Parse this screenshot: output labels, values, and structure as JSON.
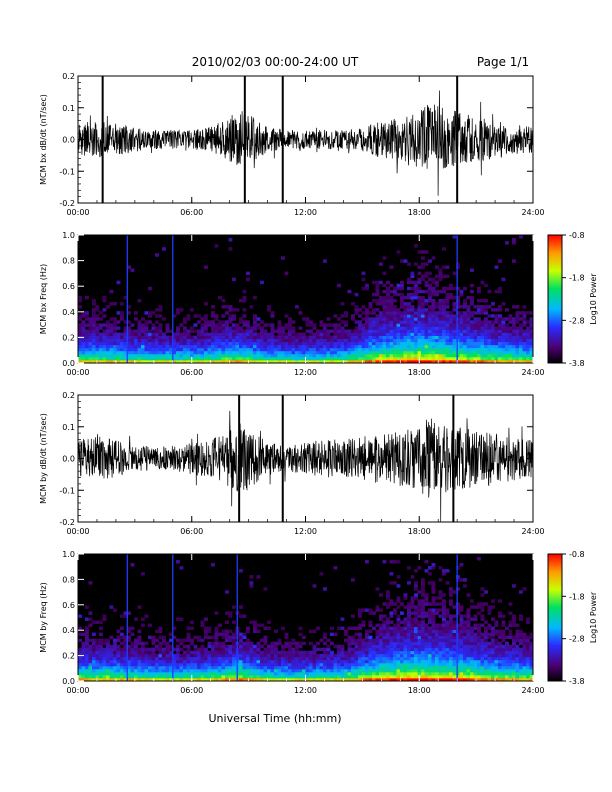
{
  "header": {
    "title": "2010/02/03  00:00-24:00 UT",
    "page": "Page 1/1"
  },
  "footer": {
    "xlabel": "Universal Time (hh:mm)"
  },
  "chart_data": [
    {
      "type": "line",
      "ylabel": "MCM bx dB/dt (nT/sec)",
      "xlim": [
        0,
        24
      ],
      "ylim": [
        -0.2,
        0.2
      ],
      "x_ticks": [
        "00:00",
        "06:00",
        "12:00",
        "18:00",
        "24:00"
      ],
      "y_ticks": [
        "-0.2",
        "-0.1",
        "0.0",
        "0.1",
        "0.2"
      ],
      "envelope": {
        "x_hours": [
          0,
          1,
          2,
          3,
          4,
          5,
          6,
          7,
          8,
          8.5,
          9,
          10,
          11,
          12,
          13,
          14,
          15,
          16,
          17,
          18,
          18.5,
          19,
          20,
          21,
          22,
          23,
          24
        ],
        "amplitude": [
          0.05,
          0.06,
          0.05,
          0.04,
          0.03,
          0.03,
          0.03,
          0.04,
          0.07,
          0.1,
          0.08,
          0.04,
          0.03,
          0.03,
          0.03,
          0.03,
          0.04,
          0.06,
          0.07,
          0.1,
          0.12,
          0.11,
          0.09,
          0.07,
          0.06,
          0.05,
          0.04
        ]
      },
      "spikes_hours": [
        1.3,
        8.8,
        10.8,
        20.0
      ]
    },
    {
      "type": "heatmap",
      "ylabel": "MCM bx Freq (Hz)",
      "xlim": [
        0,
        24
      ],
      "ylim": [
        0.0,
        1.0
      ],
      "x_ticks": [
        "00:00",
        "06:00",
        "12:00",
        "18:00",
        "24:00"
      ],
      "y_ticks": [
        "0.0",
        "0.2",
        "0.4",
        "0.6",
        "0.8",
        "1.0"
      ],
      "colorbar": {
        "label": "Log10 Power",
        "range": [
          -3.8,
          -0.8
        ],
        "ticks": [
          "-0.8",
          "-1.8",
          "-2.8",
          "-3.8"
        ]
      },
      "activity": {
        "x_hours": [
          0,
          2,
          4,
          6,
          8,
          8.5,
          10,
          12,
          14,
          15,
          16,
          17,
          18,
          19,
          20,
          21,
          22,
          24
        ],
        "level": [
          0.5,
          0.45,
          0.35,
          0.3,
          0.55,
          0.6,
          0.3,
          0.25,
          0.35,
          0.6,
          0.85,
          0.9,
          1.0,
          0.95,
          0.85,
          0.75,
          0.6,
          0.5
        ]
      },
      "vertical_lines_hours": [
        2.6,
        5.0,
        20.0
      ]
    },
    {
      "type": "line",
      "ylabel": "MCM by dB/dt (nT/sec)",
      "xlim": [
        0,
        24
      ],
      "ylim": [
        -0.2,
        0.2
      ],
      "x_ticks": [
        "00:00",
        "06:00",
        "12:00",
        "18:00",
        "24:00"
      ],
      "y_ticks": [
        "-0.2",
        "-0.1",
        "0.0",
        "0.1",
        "0.2"
      ],
      "envelope": {
        "x_hours": [
          0,
          1,
          2,
          3,
          4,
          5,
          6,
          7,
          8,
          8.5,
          9,
          10,
          11,
          12,
          13,
          14,
          15,
          16,
          17,
          18,
          18.5,
          19,
          20,
          21,
          22,
          23,
          24
        ],
        "amplitude": [
          0.06,
          0.07,
          0.06,
          0.04,
          0.04,
          0.04,
          0.05,
          0.06,
          0.09,
          0.12,
          0.1,
          0.05,
          0.04,
          0.05,
          0.06,
          0.06,
          0.07,
          0.08,
          0.09,
          0.11,
          0.13,
          0.12,
          0.1,
          0.09,
          0.08,
          0.07,
          0.06
        ]
      },
      "spikes_hours": [
        8.5,
        10.8,
        19.8
      ]
    },
    {
      "type": "heatmap",
      "ylabel": "MCM by Freq (Hz)",
      "xlim": [
        0,
        24
      ],
      "ylim": [
        0.0,
        1.0
      ],
      "x_ticks": [
        "00:00",
        "06:00",
        "12:00",
        "18:00",
        "24:00"
      ],
      "y_ticks": [
        "0.0",
        "0.2",
        "0.4",
        "0.6",
        "0.8",
        "1.0"
      ],
      "colorbar": {
        "label": "Log10 Power",
        "range": [
          -3.8,
          -0.8
        ],
        "ticks": [
          "-0.8",
          "-1.8",
          "-2.8",
          "-3.8"
        ]
      },
      "activity": {
        "x_hours": [
          0,
          2,
          4,
          6,
          8,
          8.5,
          10,
          12,
          14,
          15,
          16,
          17,
          18,
          19,
          20,
          21,
          22,
          24
        ],
        "level": [
          0.55,
          0.5,
          0.4,
          0.35,
          0.6,
          0.7,
          0.35,
          0.3,
          0.4,
          0.65,
          0.85,
          0.95,
          1.0,
          0.95,
          0.9,
          0.8,
          0.65,
          0.55
        ]
      },
      "vertical_lines_hours": [
        2.6,
        5.0,
        8.4,
        20.0
      ]
    }
  ]
}
